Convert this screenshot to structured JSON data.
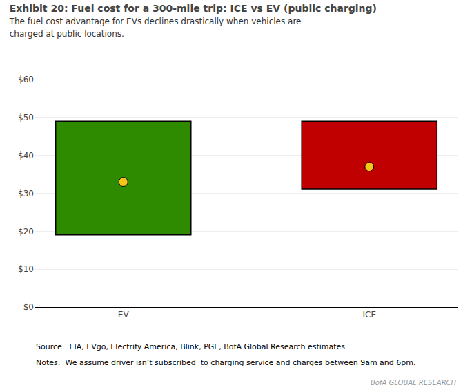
{
  "chart_data": {
    "type": "range_bar",
    "title": "Exhibit 20: Fuel cost for a 300-mile trip: ICE vs EV (public charging)",
    "subtitle": "The fuel cost advantage for EVs declines drastically when vehicles are\ncharged at public locations.",
    "categories": [
      "EV",
      "ICE"
    ],
    "series": [
      {
        "type": "range_bar",
        "low": [
          19,
          31
        ],
        "high": [
          49,
          49
        ],
        "colors": [
          "#2e8b00",
          "#c00000"
        ]
      },
      {
        "type": "scatter",
        "values": [
          33,
          37
        ],
        "color": "#f5c518",
        "marker": "circle"
      }
    ],
    "ylim": [
      0,
      60
    ],
    "yticks": [
      {
        "value": 0,
        "label": "$0"
      },
      {
        "value": 10,
        "label": "$10"
      },
      {
        "value": 20,
        "label": "$20"
      },
      {
        "value": 30,
        "label": "$30"
      },
      {
        "value": 40,
        "label": "$40"
      },
      {
        "value": 50,
        "label": "$50"
      },
      {
        "value": 60,
        "label": "$60"
      }
    ],
    "grid": true,
    "annotations": [
      "Source:  EIA, EVgo, Electrify America, Blink, PGE, BofA Global Research estimates",
      "Notes:  We assume driver isn’t subscribed  to charging service and charges between 9am and 6pm.",
      "BofA GLOBAL RESEARCH"
    ]
  }
}
